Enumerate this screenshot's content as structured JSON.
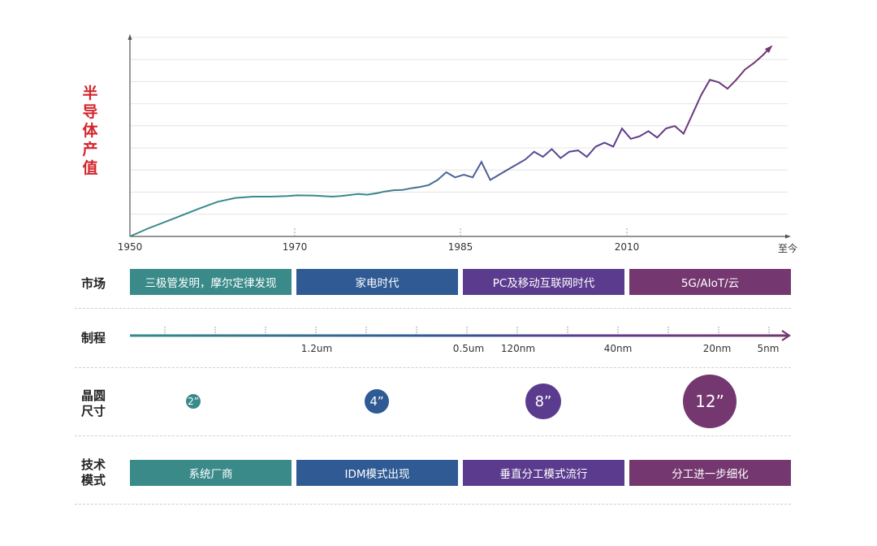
{
  "y_title": [
    "半",
    "导",
    "体",
    "产",
    "值"
  ],
  "timeline": {
    "ticks": [
      "1950",
      "1970",
      "1985",
      "2010",
      "至今"
    ]
  },
  "colors": {
    "teal": "#3a8a8a",
    "blue": "#2f5a94",
    "purple": "#5b3b8e",
    "plum": "#74376f",
    "red": "#d3242b"
  },
  "rows": {
    "market": {
      "label": "市场",
      "bars": [
        "三极管发明，摩尔定律发现",
        "家电时代",
        "PC及移动互联网时代",
        "5G/AIoT/云"
      ]
    },
    "process": {
      "label": "制程",
      "nodes": [
        "1.2um",
        "0.5um",
        "120nm",
        "40nm",
        "20nm",
        "5nm"
      ]
    },
    "wafer": {
      "label_lines": [
        "晶圆",
        "尺寸"
      ],
      "sizes": [
        "2”",
        "4”",
        "8”",
        "12”"
      ]
    },
    "tech": {
      "label_lines": [
        "技术",
        "模式"
      ],
      "bars": [
        "系统厂商",
        "IDM模式出现",
        "垂直分工模式流行",
        "分工进一步细化"
      ]
    }
  },
  "chart_data": {
    "type": "line",
    "title": "",
    "ylabel": "半导体产值",
    "xlabel": "",
    "x_tick_labels": [
      "1950",
      "1970",
      "1985",
      "2010",
      "至今"
    ],
    "x": [
      1950,
      1952,
      1955,
      1958,
      1960,
      1962,
      1964,
      1966,
      1968,
      1969,
      1971,
      1973,
      1974,
      1976,
      1977,
      1978,
      1979,
      1980,
      1981,
      1982,
      1983,
      1984,
      1985,
      1986,
      1987,
      1988,
      1989,
      1990,
      1991,
      1992,
      1993,
      1994,
      1995,
      1996,
      1997,
      1998,
      1999,
      2000,
      2001,
      2002,
      2003,
      2004,
      2005,
      2006,
      2007,
      2008,
      2009,
      2010,
      2011,
      2012,
      2013,
      2014,
      2015,
      2016,
      2017,
      2018,
      2019,
      2020,
      2021,
      2022,
      2023
    ],
    "values": [
      0,
      6,
      14,
      22,
      27,
      30,
      31,
      31,
      31.5,
      32,
      31.8,
      31,
      31.5,
      33,
      32.5,
      33.5,
      35,
      36,
      36.2,
      37.5,
      38.5,
      40,
      44,
      50,
      46,
      48,
      46,
      58,
      44,
      48,
      52,
      56,
      60,
      66,
      62,
      68,
      61,
      66,
      67,
      62,
      70,
      73,
      70,
      84,
      76,
      78,
      82,
      77,
      84,
      86,
      80,
      95,
      110,
      122,
      120,
      115,
      122,
      130,
      135,
      141,
      148
    ],
    "ylim": [
      0,
      155
    ]
  }
}
